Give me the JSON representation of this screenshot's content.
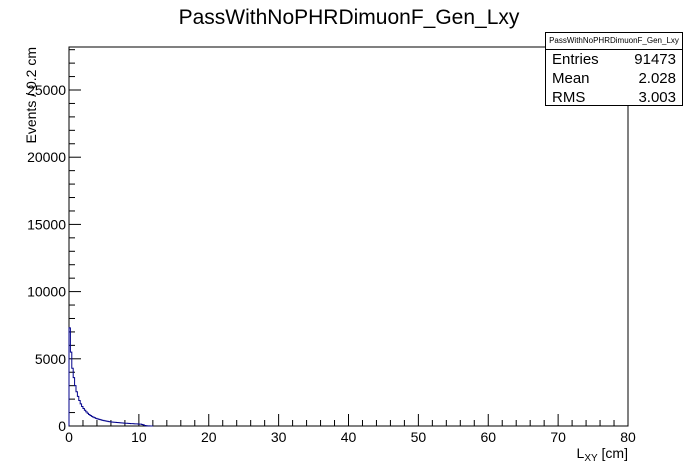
{
  "chart_data": {
    "type": "bar",
    "title": "PassWithNoPHRDimuonF_Gen_Lxy",
    "xlabel": "L",
    "xlabel_sub": "XY",
    "xlabel_unit": " [cm]",
    "ylabel": "Events / 0.2 cm",
    "xlim": [
      0,
      80
    ],
    "ylim": [
      0,
      28200
    ],
    "bin_width": 0.2,
    "x_ticks": [
      "0",
      "10",
      "20",
      "30",
      "40",
      "50",
      "60",
      "70",
      "80"
    ],
    "y_ticks": [
      "0",
      "5000",
      "10000",
      "15000",
      "20000",
      "25000"
    ],
    "x_tick_values": [
      0,
      10,
      20,
      30,
      40,
      50,
      60,
      70,
      80
    ],
    "y_tick_values": [
      0,
      5000,
      10000,
      15000,
      20000,
      25000
    ],
    "series": [
      {
        "values": [
          7300,
          5500,
          4300,
          3600,
          3000,
          2550,
          2200,
          1900,
          1650,
          1450,
          1300,
          1170,
          1050,
          950,
          860,
          780,
          720,
          660,
          610,
          570,
          530,
          500,
          470,
          440,
          415,
          390,
          370,
          350,
          330,
          315,
          300,
          290,
          280,
          270,
          260,
          250,
          240,
          232,
          224,
          216,
          208,
          200,
          193,
          186,
          180,
          174,
          168,
          162,
          156,
          150,
          144,
          138,
          110,
          70,
          40,
          20,
          10,
          5,
          2,
          1
        ]
      }
    ],
    "line_color": "#00008b",
    "grid": false,
    "legend": "top-right"
  },
  "stats": {
    "title": "PassWithNoPHRDimuonF_Gen_Lxy",
    "rows": [
      {
        "label": "Entries",
        "value": "91473"
      },
      {
        "label": "Mean",
        "value": "2.028"
      },
      {
        "label": "RMS",
        "value": "3.003"
      }
    ]
  }
}
